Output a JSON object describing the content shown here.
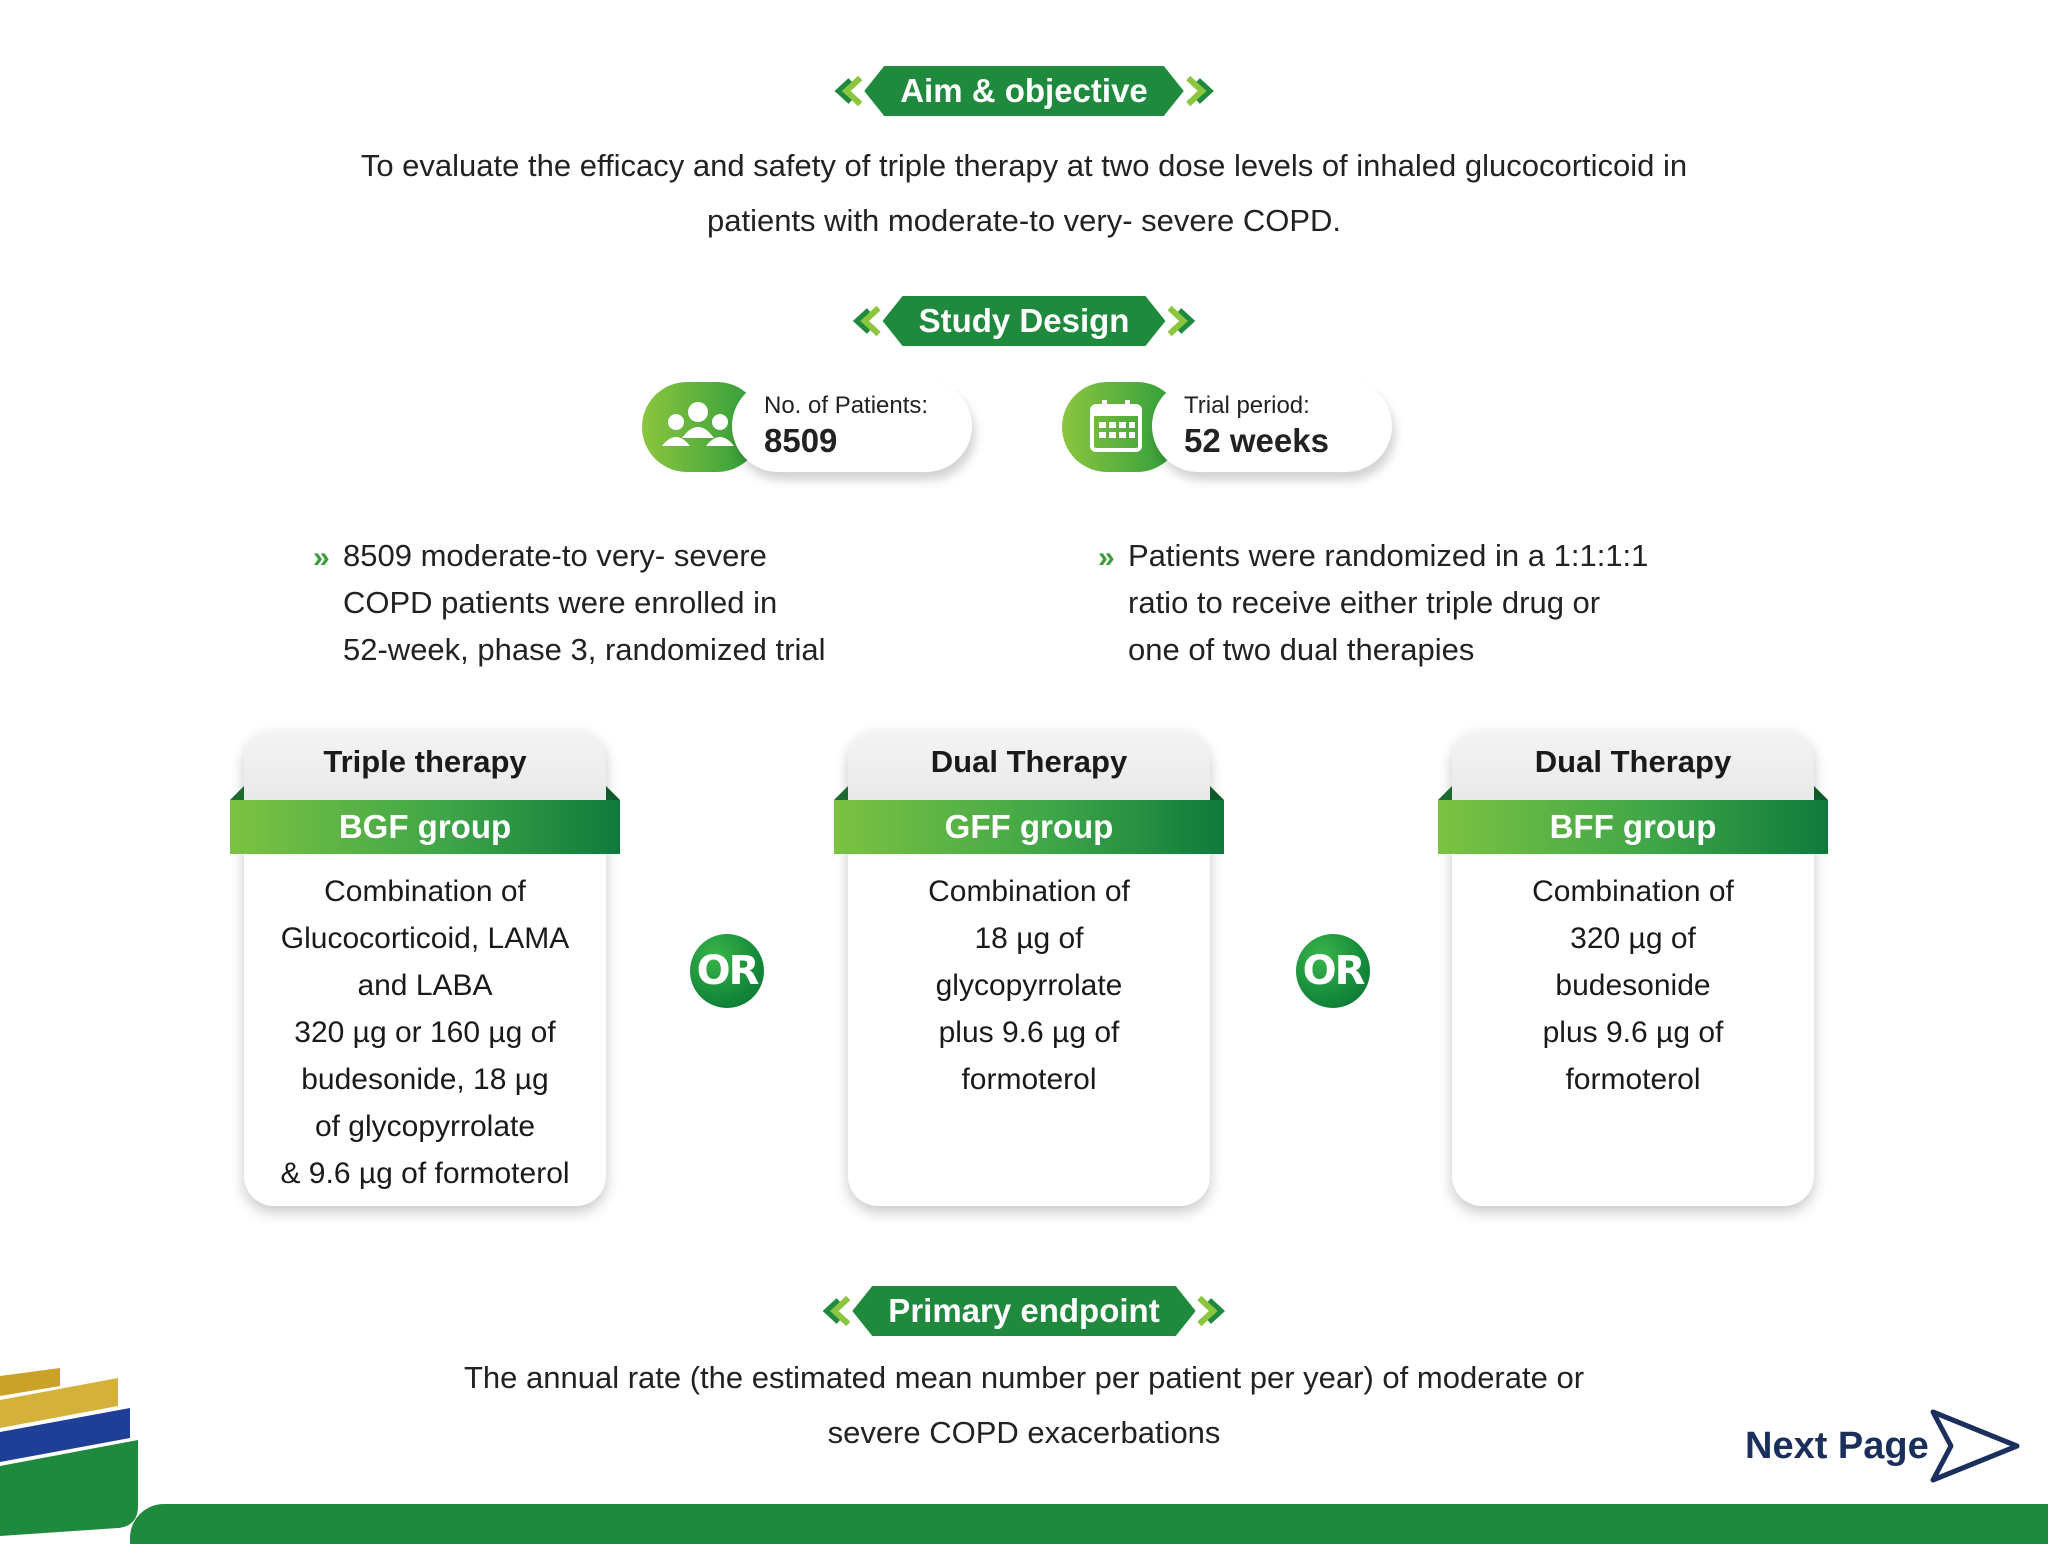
{
  "aim": {
    "heading": "Aim & objective",
    "text_line1": "To evaluate the efficacy and safety of triple therapy at two dose levels of inhaled glucocorticoid in",
    "text_line2": "patients with moderate-to very- severe COPD."
  },
  "study_design": {
    "heading": "Study Design",
    "patients": {
      "label": "No. of Patients:",
      "value": "8509",
      "icon": "people-icon"
    },
    "trial": {
      "label": "Trial period:",
      "value": "52 weeks",
      "icon": "calendar-icon"
    },
    "bullets": [
      [
        "8509 moderate-to very- severe",
        "COPD patients were enrolled in",
        "52-week, phase 3, randomized trial"
      ],
      [
        "Patients were randomized in a 1:1:1:1",
        "ratio to receive either triple drug or",
        "one of two dual therapies"
      ]
    ]
  },
  "cards": [
    {
      "title": "Triple therapy",
      "group": "BGF group",
      "lines": [
        "Combination of",
        "Glucocorticoid, LAMA",
        "and LABA",
        "320 µg or 160 µg of",
        "budesonide, 18 µg",
        "of glycopyrrolate",
        "& 9.6 µg of formoterol"
      ]
    },
    {
      "title": "Dual Therapy",
      "group": "GFF group",
      "lines": [
        "Combination of",
        "18 µg of",
        "glycopyrrolate",
        "plus 9.6 µg of",
        "formoterol"
      ]
    },
    {
      "title": "Dual Therapy",
      "group": "BFF group",
      "lines": [
        "Combination of",
        "320 µg of",
        "budesonide",
        "plus 9.6 µg of",
        "formoterol"
      ]
    }
  ],
  "or_label": "OR",
  "primary_endpoint": {
    "heading": "Primary endpoint",
    "text_line1": "The annual rate (the estimated mean number per patient per year) of moderate or",
    "text_line2": "severe COPD exacerbations"
  },
  "navigation": {
    "next_label": "Next Page"
  },
  "colors": {
    "green": "#1f8a3e",
    "light_green": "#8cc63f",
    "navy": "#1b2f5c"
  }
}
